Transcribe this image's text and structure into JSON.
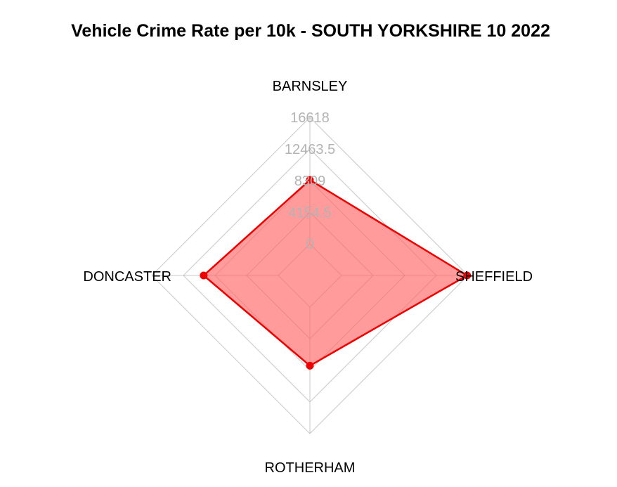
{
  "chart_data": {
    "type": "radar",
    "title": "Vehicle Crime Rate per 10k - SOUTH YORKSHIRE 10 2022",
    "categories": [
      "BARNSLEY",
      "SHEFFIELD",
      "ROTHERHAM",
      "DONCASTER"
    ],
    "ring_labels": [
      "0",
      "4154.5",
      "8309",
      "12463.5",
      "16618"
    ],
    "rmin": 0,
    "rmax": 16618,
    "series": [
      {
        "values": [
          8400,
          16500,
          7700,
          9800
        ],
        "color": "#ee0000",
        "fill": "#ff6666"
      }
    ],
    "grid": true
  }
}
